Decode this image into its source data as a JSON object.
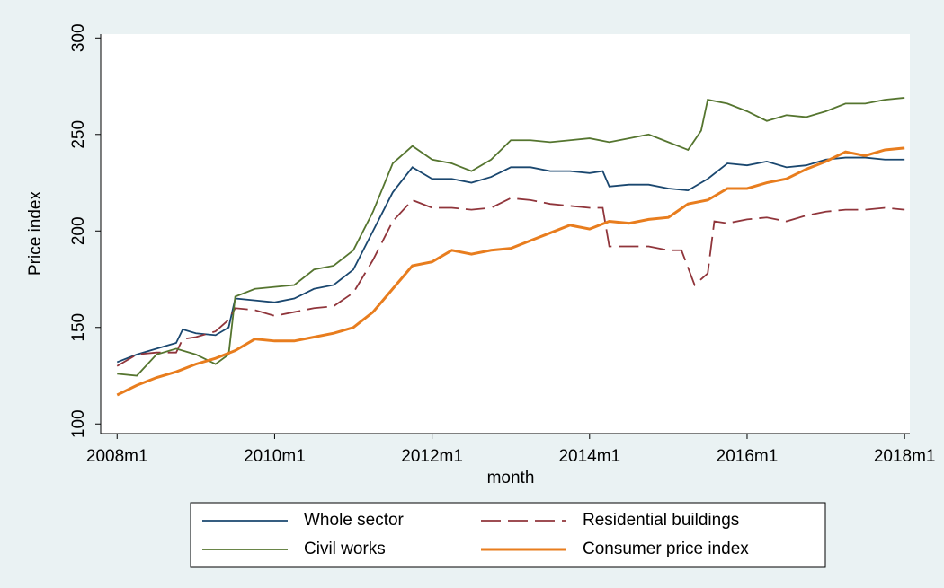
{
  "chart_data": {
    "type": "line",
    "x_label": "month",
    "y_label": "Price index",
    "xlim": [
      573.5,
      696.8
    ],
    "ylim": [
      95,
      302
    ],
    "xticks": [
      {
        "value": 576,
        "label": "2008m1"
      },
      {
        "value": 600,
        "label": "2010m1"
      },
      {
        "value": 624,
        "label": "2012m1"
      },
      {
        "value": 648,
        "label": "2014m1"
      },
      {
        "value": 672,
        "label": "2016m1"
      },
      {
        "value": 696,
        "label": "2018m1"
      }
    ],
    "yticks": [
      100,
      150,
      200,
      250,
      300
    ],
    "grid": false,
    "legend_position": "bottom",
    "series": [
      {
        "name": "Whole sector",
        "color": "#1a476f",
        "dash": false,
        "x": [
          576,
          579,
          582,
          585,
          586,
          588,
          591,
          593,
          594,
          597,
          600,
          603,
          606,
          609,
          612,
          615,
          618,
          621,
          624,
          627,
          630,
          633,
          636,
          639,
          642,
          645,
          648,
          650,
          651,
          654,
          657,
          660,
          663,
          666,
          669,
          672,
          675,
          678,
          681,
          684,
          687,
          690,
          693,
          696
        ],
        "values": [
          132,
          136,
          139,
          142,
          149,
          147,
          146,
          150,
          165,
          164,
          163,
          165,
          170,
          172,
          180,
          200,
          220,
          233,
          227,
          227,
          225,
          228,
          233,
          233,
          231,
          231,
          230,
          231,
          223,
          224,
          224,
          222,
          221,
          227,
          235,
          234,
          236,
          233,
          234,
          237,
          238,
          238,
          237,
          237
        ]
      },
      {
        "name": "Residential buildings",
        "color": "#90353b",
        "dash": true,
        "x": [
          576,
          579,
          582,
          585,
          586,
          588,
          591,
          593,
          594,
          597,
          600,
          603,
          606,
          609,
          612,
          615,
          618,
          621,
          624,
          627,
          630,
          633,
          636,
          639,
          642,
          645,
          648,
          650,
          651,
          654,
          657,
          660,
          662,
          664,
          666,
          667,
          669,
          672,
          675,
          678,
          681,
          684,
          687,
          690,
          693,
          696
        ],
        "values": [
          130,
          136,
          137,
          137,
          144,
          145,
          148,
          154,
          160,
          159,
          156,
          158,
          160,
          161,
          168,
          185,
          205,
          216,
          212,
          212,
          211,
          212,
          217,
          216,
          214,
          213,
          212,
          212,
          192,
          192,
          192,
          190,
          190,
          172,
          178,
          205,
          204,
          206,
          207,
          205,
          208,
          210,
          211,
          211,
          212,
          211
        ]
      },
      {
        "name": "Civil works",
        "color": "#55752f",
        "dash": false,
        "x": [
          576,
          579,
          582,
          585,
          588,
          591,
          593,
          594,
          597,
          600,
          603,
          606,
          609,
          612,
          615,
          618,
          621,
          624,
          627,
          630,
          633,
          636,
          639,
          642,
          645,
          648,
          651,
          654,
          657,
          660,
          663,
          665,
          666,
          669,
          672,
          675,
          678,
          681,
          684,
          687,
          690,
          693,
          696
        ],
        "values": [
          126,
          125,
          136,
          139,
          136,
          131,
          136,
          166,
          170,
          171,
          172,
          180,
          182,
          190,
          210,
          235,
          244,
          237,
          235,
          231,
          237,
          247,
          247,
          246,
          247,
          248,
          246,
          248,
          250,
          246,
          242,
          252,
          268,
          266,
          262,
          257,
          260,
          259,
          262,
          266,
          266,
          268,
          269
        ]
      },
      {
        "name": "Consumer price index",
        "color": "#e87d1e",
        "dash": false,
        "thick": true,
        "x": [
          576,
          579,
          582,
          585,
          588,
          591,
          594,
          597,
          600,
          603,
          606,
          609,
          612,
          615,
          618,
          621,
          624,
          627,
          630,
          633,
          636,
          639,
          642,
          645,
          648,
          651,
          654,
          657,
          660,
          663,
          666,
          669,
          672,
          675,
          678,
          681,
          684,
          687,
          690,
          693,
          696
        ],
        "values": [
          115,
          120,
          124,
          127,
          131,
          134,
          138,
          144,
          143,
          143,
          145,
          147,
          150,
          158,
          170,
          182,
          184,
          190,
          188,
          190,
          191,
          195,
          199,
          203,
          201,
          205,
          204,
          206,
          207,
          214,
          216,
          222,
          222,
          225,
          227,
          232,
          236,
          241,
          239,
          242,
          243
        ]
      }
    ]
  }
}
